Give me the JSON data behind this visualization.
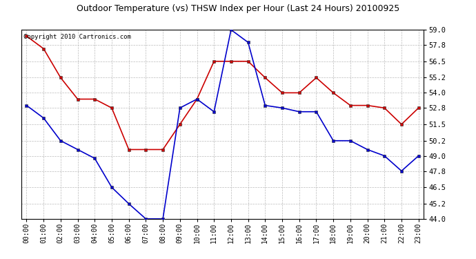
{
  "title": "Outdoor Temperature (vs) THSW Index per Hour (Last 24 Hours) 20100925",
  "copyright_text": "Copyright 2010 Cartronics.com",
  "hours": [
    0,
    1,
    2,
    3,
    4,
    5,
    6,
    7,
    8,
    9,
    10,
    11,
    12,
    13,
    14,
    15,
    16,
    17,
    18,
    19,
    20,
    21,
    22,
    23
  ],
  "red_line": [
    58.5,
    57.5,
    55.2,
    53.5,
    53.5,
    52.8,
    49.5,
    49.5,
    49.5,
    51.5,
    53.5,
    56.5,
    56.5,
    56.5,
    55.2,
    54.0,
    54.0,
    55.2,
    54.0,
    53.0,
    53.0,
    52.8,
    51.5,
    52.8
  ],
  "blue_line": [
    53.0,
    52.0,
    50.2,
    49.5,
    48.8,
    46.5,
    45.2,
    44.0,
    44.0,
    52.8,
    53.5,
    52.5,
    59.0,
    58.0,
    53.0,
    52.8,
    52.5,
    52.5,
    50.2,
    50.2,
    49.5,
    49.0,
    47.8,
    49.0
  ],
  "red_color": "#cc0000",
  "blue_color": "#0000cc",
  "background_color": "#ffffff",
  "grid_color": "#bbbbbb",
  "ylim": [
    44.0,
    59.0
  ],
  "ytick_values": [
    44.0,
    45.2,
    46.5,
    47.8,
    49.0,
    50.2,
    51.5,
    52.8,
    54.0,
    55.2,
    56.5,
    57.8,
    59.0
  ],
  "title_fontsize": 9,
  "copyright_fontsize": 6.5,
  "tick_fontsize": 7,
  "marker_size": 3.5,
  "linewidth": 1.2
}
